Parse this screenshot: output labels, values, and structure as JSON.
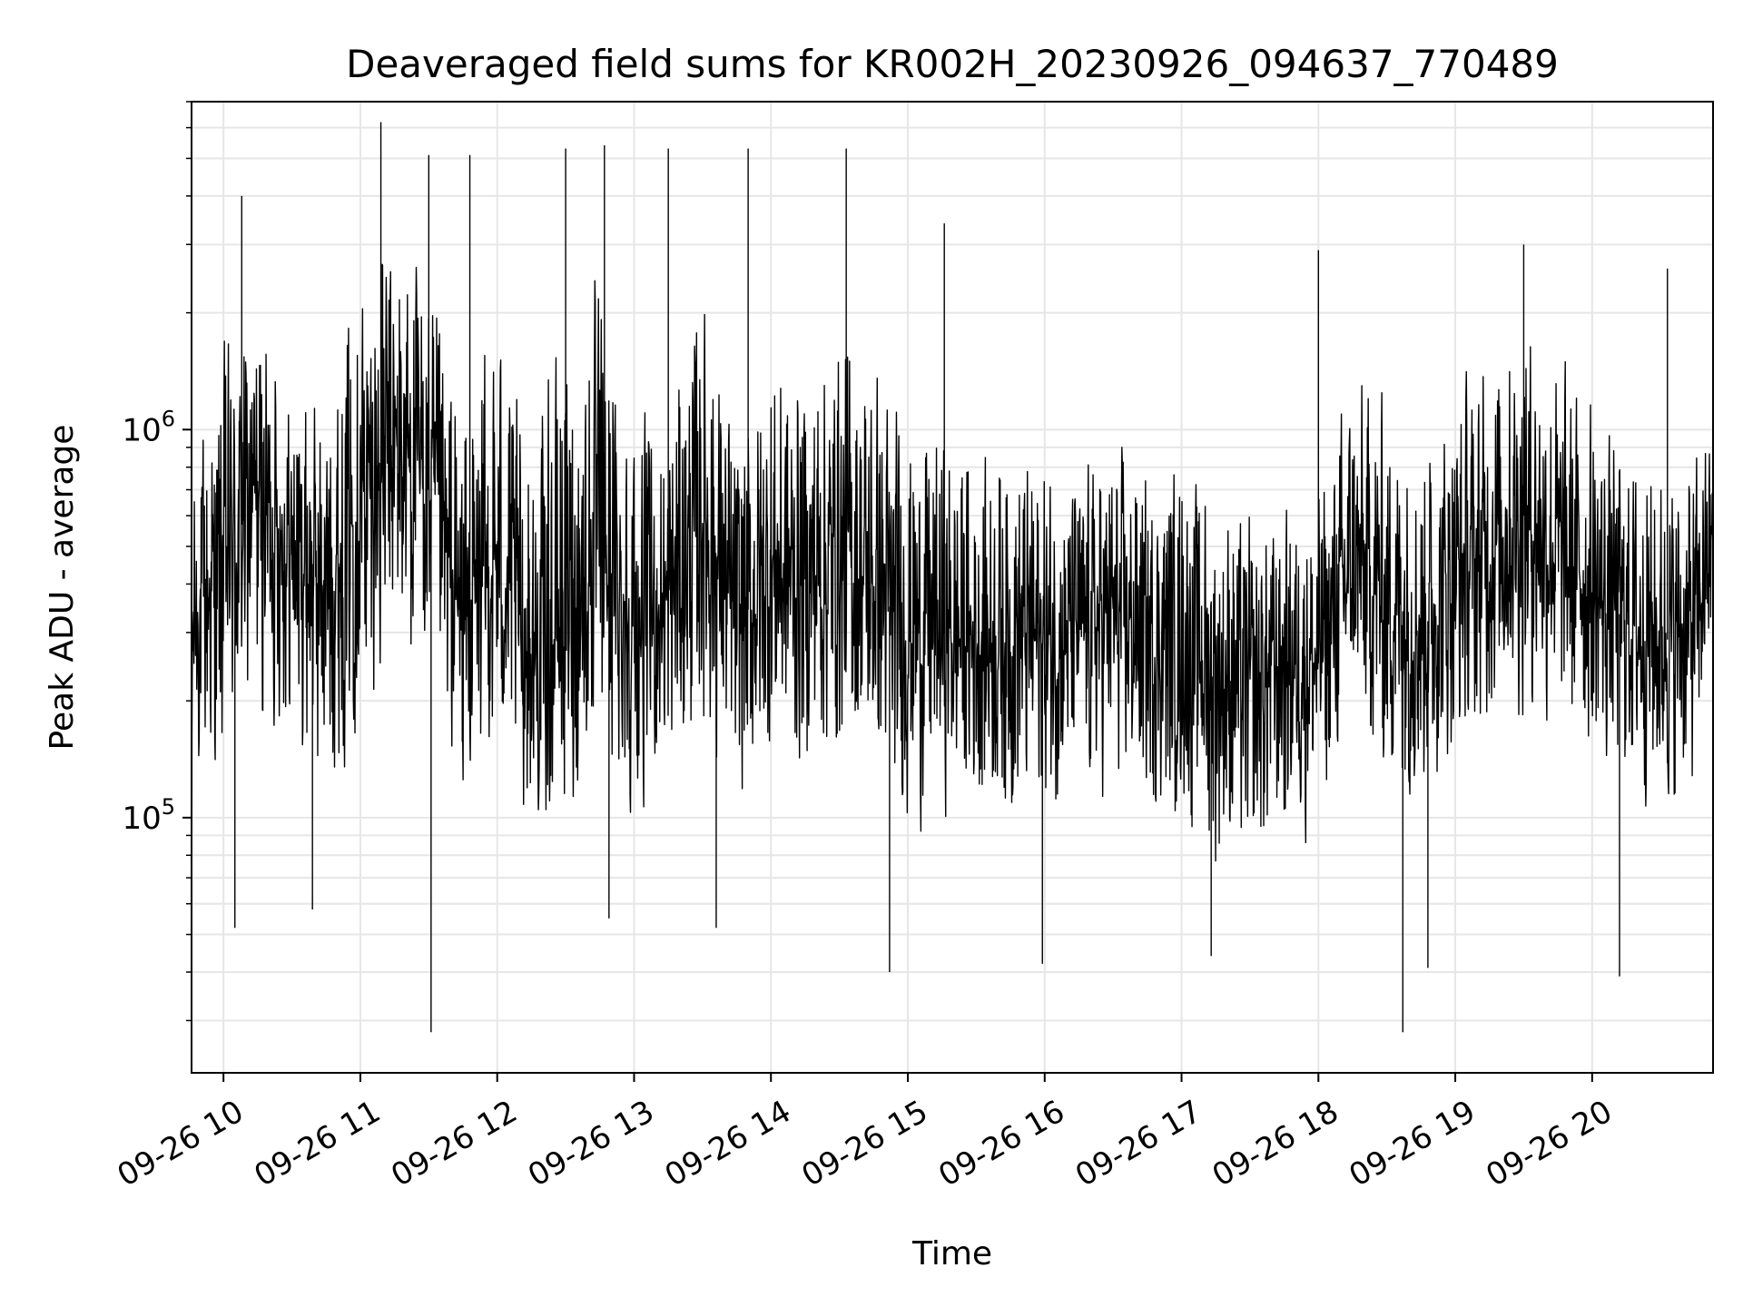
{
  "chart_data": {
    "type": "line",
    "title": "Deaveraged field sums for KR002H_20230926_094637_770489",
    "xlabel": "Time",
    "ylabel": "Peak ADU - average",
    "y_scale": "log",
    "ylim": [
      22000,
      7000000
    ],
    "xlim": [
      "2023-09-26 09:46",
      "2023-09-26 20:53"
    ],
    "x_ticks": [
      {
        "t": "2023-09-26 10:00",
        "label": "09-26 10"
      },
      {
        "t": "2023-09-26 11:00",
        "label": "09-26 11"
      },
      {
        "t": "2023-09-26 12:00",
        "label": "09-26 12"
      },
      {
        "t": "2023-09-26 13:00",
        "label": "09-26 13"
      },
      {
        "t": "2023-09-26 14:00",
        "label": "09-26 14"
      },
      {
        "t": "2023-09-26 15:00",
        "label": "09-26 15"
      },
      {
        "t": "2023-09-26 16:00",
        "label": "09-26 16"
      },
      {
        "t": "2023-09-26 17:00",
        "label": "09-26 17"
      },
      {
        "t": "2023-09-26 18:00",
        "label": "09-26 18"
      },
      {
        "t": "2023-09-26 19:00",
        "label": "09-26 19"
      },
      {
        "t": "2023-09-26 20:00",
        "label": "09-26 20"
      }
    ],
    "y_ticks": [
      {
        "value": 100000,
        "label": "10",
        "exp": "5"
      },
      {
        "value": 1000000,
        "label": "10",
        "exp": "6"
      }
    ],
    "grid": true,
    "line_color": "#000000",
    "series": [
      {
        "x": [
          "2023-09-26 09:46",
          "2023-09-26 10:00",
          "2023-09-26 10:15",
          "2023-09-26 10:30",
          "2023-09-26 10:45",
          "2023-09-26 11:00",
          "2023-09-26 11:15",
          "2023-09-26 11:30",
          "2023-09-26 11:45",
          "2023-09-26 12:00",
          "2023-09-26 12:15",
          "2023-09-26 12:30",
          "2023-09-26 12:45",
          "2023-09-26 13:00",
          "2023-09-26 13:15",
          "2023-09-26 13:30",
          "2023-09-26 13:45",
          "2023-09-26 14:00",
          "2023-09-26 14:15",
          "2023-09-26 14:30",
          "2023-09-26 14:45",
          "2023-09-26 15:00",
          "2023-09-26 15:15",
          "2023-09-26 15:30",
          "2023-09-26 15:45",
          "2023-09-26 16:00",
          "2023-09-26 16:15",
          "2023-09-26 16:30",
          "2023-09-26 16:45",
          "2023-09-26 17:00",
          "2023-09-26 17:15",
          "2023-09-26 17:30",
          "2023-09-26 17:45",
          "2023-09-26 18:00",
          "2023-09-26 18:15",
          "2023-09-26 18:30",
          "2023-09-26 18:45",
          "2023-09-26 19:00",
          "2023-09-26 19:15",
          "2023-09-26 19:30",
          "2023-09-26 19:45",
          "2023-09-26 20:00",
          "2023-09-26 20:15",
          "2023-09-26 20:30",
          "2023-09-26 20:45",
          "2023-09-26 20:53"
        ],
        "median": [
          300000,
          450000,
          700000,
          500000,
          420000,
          650000,
          900000,
          700000,
          300000,
          450000,
          250000,
          300000,
          500000,
          300000,
          350000,
          600000,
          300000,
          450000,
          400000,
          450000,
          400000,
          300000,
          300000,
          280000,
          300000,
          280000,
          300000,
          330000,
          280000,
          300000,
          240000,
          220000,
          260000,
          250000,
          450000,
          380000,
          300000,
          420000,
          500000,
          600000,
          480000,
          400000,
          320000,
          280000,
          320000,
          550000
        ],
        "low": [
          110000,
          90000,
          150000,
          130000,
          80000,
          150000,
          200000,
          180000,
          90000,
          120000,
          80000,
          80000,
          110000,
          90000,
          100000,
          130000,
          90000,
          110000,
          110000,
          120000,
          110000,
          80000,
          90000,
          90000,
          80000,
          90000,
          90000,
          100000,
          90000,
          80000,
          60000,
          60000,
          70000,
          80000,
          150000,
          90000,
          90000,
          120000,
          140000,
          150000,
          140000,
          120000,
          100000,
          90000,
          90000,
          200000
        ],
        "high": [
          900000,
          2000000,
          2500000,
          1500000,
          1400000,
          3500000,
          4500000,
          3000000,
          1400000,
          2500000,
          1200000,
          2500000,
          3000000,
          1200000,
          1400000,
          3000000,
          1200000,
          2000000,
          1800000,
          2500000,
          2000000,
          1200000,
          1200000,
          1000000,
          1100000,
          1000000,
          900000,
          1100000,
          900000,
          1000000,
          800000,
          700000,
          700000,
          800000,
          1800000,
          1400000,
          1200000,
          1600000,
          1900000,
          2500000,
          1800000,
          1400000,
          1000000,
          1000000,
          1000000,
          1200000
        ],
        "spikes": [
          {
            "t": "2023-09-26 10:08",
            "y": 4000000
          },
          {
            "t": "2023-09-26 10:05",
            "y": 52000
          },
          {
            "t": "2023-09-26 10:39",
            "y": 58000
          },
          {
            "t": "2023-09-26 11:09",
            "y": 6200000
          },
          {
            "t": "2023-09-26 11:30",
            "y": 5100000
          },
          {
            "t": "2023-09-26 11:31",
            "y": 28000
          },
          {
            "t": "2023-09-26 11:48",
            "y": 5100000
          },
          {
            "t": "2023-09-26 12:30",
            "y": 5300000
          },
          {
            "t": "2023-09-26 12:47",
            "y": 5400000
          },
          {
            "t": "2023-09-26 12:49",
            "y": 55000
          },
          {
            "t": "2023-09-26 13:15",
            "y": 5300000
          },
          {
            "t": "2023-09-26 13:36",
            "y": 52000
          },
          {
            "t": "2023-09-26 13:50",
            "y": 5300000
          },
          {
            "t": "2023-09-26 14:33",
            "y": 5300000
          },
          {
            "t": "2023-09-26 14:52",
            "y": 40000
          },
          {
            "t": "2023-09-26 15:16",
            "y": 3400000
          },
          {
            "t": "2023-09-26 15:59",
            "y": 42000
          },
          {
            "t": "2023-09-26 17:13",
            "y": 44000
          },
          {
            "t": "2023-09-26 18:00",
            "y": 2900000
          },
          {
            "t": "2023-09-26 18:37",
            "y": 28000
          },
          {
            "t": "2023-09-26 18:48",
            "y": 41000
          },
          {
            "t": "2023-09-26 19:30",
            "y": 3000000
          },
          {
            "t": "2023-09-26 20:12",
            "y": 39000
          },
          {
            "t": "2023-09-26 20:33",
            "y": 2600000
          }
        ]
      }
    ]
  }
}
